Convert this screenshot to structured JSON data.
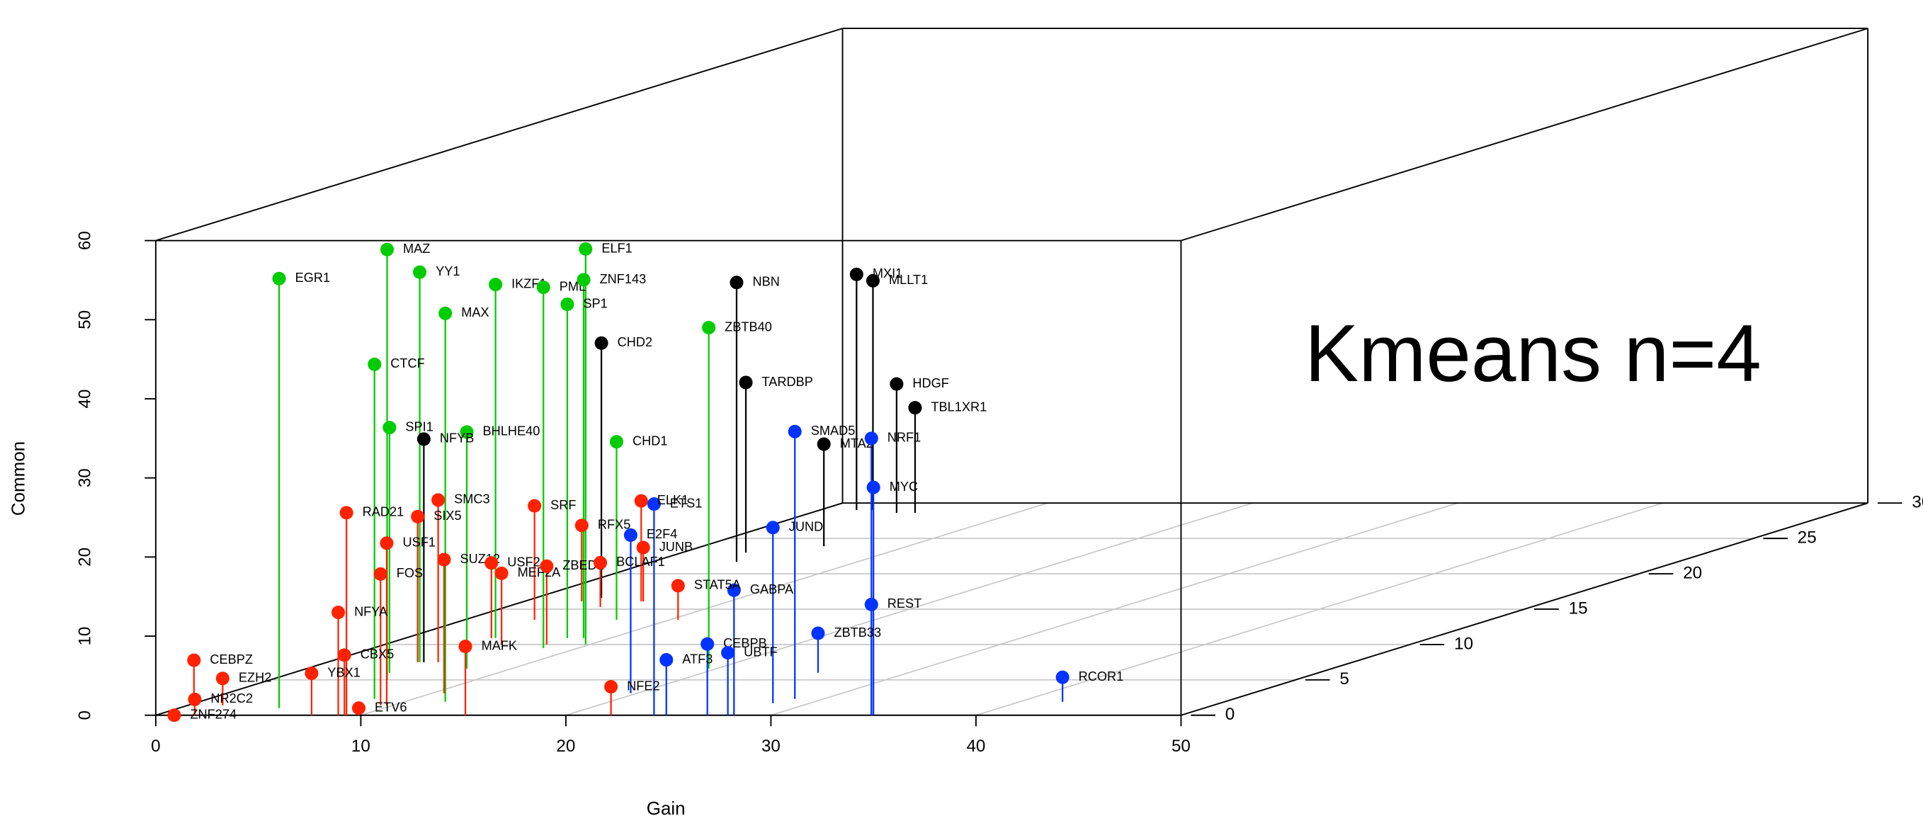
{
  "chart_data": {
    "type": "scatter3d",
    "xlabel": "Gain",
    "zlabel": "Common",
    "annotation": "Kmeans n=4",
    "xlim": [
      0,
      50
    ],
    "xticks": [
      0,
      10,
      20,
      30,
      40,
      50
    ],
    "ylim": [
      0,
      30
    ],
    "yticks": [
      0,
      5,
      10,
      15,
      20,
      25,
      30
    ],
    "zlim": [
      0,
      60
    ],
    "zticks": [
      0,
      10,
      20,
      30,
      40,
      50,
      60
    ],
    "grid": true,
    "points": [
      {
        "label": "EGR1",
        "color": "#00cc00",
        "x": 4.9,
        "y": 1,
        "z": 54.3
      },
      {
        "label": "MAZ",
        "color": "#00cc00",
        "x": 5.7,
        "y": 5,
        "z": 54.4
      },
      {
        "label": "YY1",
        "color": "#00cc00",
        "x": 4.5,
        "y": 7.5,
        "z": 49.3
      },
      {
        "label": "MAX",
        "color": "#00cc00",
        "x": 12.0,
        "y": 1.9,
        "z": 49.1
      },
      {
        "label": "CTCF",
        "color": "#00cc00",
        "x": 8.1,
        "y": 2.3,
        "z": 42.3
      },
      {
        "label": "SPI1",
        "color": "#00cc00",
        "x": 4.7,
        "y": 6,
        "z": 31
      },
      {
        "label": "IKZF1",
        "color": "#00cc00",
        "x": 4.4,
        "y": 10.9,
        "z": 44.7
      },
      {
        "label": "PML",
        "color": "#00cc00",
        "x": 8.3,
        "y": 9.5,
        "z": 45.6
      },
      {
        "label": "ELF1",
        "color": "#00cc00",
        "x": 9.8,
        "y": 10,
        "z": 50
      },
      {
        "label": "ZNF143",
        "color": "#00cc00",
        "x": 8.7,
        "y": 10.9,
        "z": 45.3
      },
      {
        "label": "SP1",
        "color": "#00cc00",
        "x": 7.9,
        "y": 10.9,
        "z": 42.2
      },
      {
        "label": "BHLHE40",
        "color": "#00cc00",
        "x": 7.8,
        "y": 6.6,
        "z": 29.9
      },
      {
        "label": "CHD1",
        "color": "#00cc00",
        "x": 7.4,
        "y": 13.5,
        "z": 22.5
      },
      {
        "label": "ZBTB40",
        "color": "#00cc00",
        "x": 19.6,
        "y": 6.6,
        "z": 43.1
      },
      {
        "label": "NFYB",
        "color": "#000000",
        "x": 4.7,
        "y": 7.5,
        "z": 28.2
      },
      {
        "label": "CHD2",
        "color": "#000000",
        "x": 3.2,
        "y": 16.6,
        "z": 32.2
      },
      {
        "label": "NBN",
        "color": "#000000",
        "x": 4.1,
        "y": 21.7,
        "z": 35.3
      },
      {
        "label": "TARDBP",
        "color": "#000000",
        "x": 3.1,
        "y": 23,
        "z": 21.5
      },
      {
        "label": "MXI1",
        "color": "#000000",
        "x": 1.8,
        "y": 29,
        "z": 29.8
      },
      {
        "label": "MLLT1",
        "color": "#000000",
        "x": 2.6,
        "y": 29,
        "z": 29
      },
      {
        "label": "HDGF",
        "color": "#000000",
        "x": 4.2,
        "y": 28.6,
        "z": 16.3
      },
      {
        "label": "TBL1XR1",
        "color": "#000000",
        "x": 5.1,
        "y": 28.6,
        "z": 13.3
      },
      {
        "label": "MTA2",
        "color": "#000000",
        "x": 5.9,
        "y": 23.9,
        "z": 12.9
      },
      {
        "label": "SMAD5",
        "color": "#0033ff",
        "x": 28.6,
        "y": 2.3,
        "z": 33.8
      },
      {
        "label": "NRF1",
        "color": "#0033ff",
        "x": 34.9,
        "y": 0,
        "z": 35
      },
      {
        "label": "MYC",
        "color": "#0033ff",
        "x": 35,
        "y": 0,
        "z": 28.8
      },
      {
        "label": "ETS1",
        "color": "#0033ff",
        "x": 24.3,
        "y": 0,
        "z": 26.7
      },
      {
        "label": "E2F4",
        "color": "#0033ff",
        "x": 19.7,
        "y": 3.1,
        "z": 20
      },
      {
        "label": "JUND",
        "color": "#0033ff",
        "x": 28.2,
        "y": 1.7,
        "z": 22.2
      },
      {
        "label": "GABPA",
        "color": "#0033ff",
        "x": 28.2,
        "y": 0,
        "z": 15.8
      },
      {
        "label": "REST",
        "color": "#0033ff",
        "x": 34.9,
        "y": 0,
        "z": 14
      },
      {
        "label": "ZBTB33",
        "color": "#0033ff",
        "x": 25.6,
        "y": 6,
        "z": 5
      },
      {
        "label": "CEBPB",
        "color": "#0033ff",
        "x": 26.9,
        "y": 0,
        "z": 9
      },
      {
        "label": "UBTF",
        "color": "#0033ff",
        "x": 27.9,
        "y": 0,
        "z": 7.9
      },
      {
        "label": "ATF3",
        "color": "#0033ff",
        "x": 24.9,
        "y": 0,
        "z": 7
      },
      {
        "label": "RCOR1",
        "color": "#0033ff",
        "x": 42.1,
        "y": 1.9,
        "z": 3.1
      },
      {
        "label": "CEBPZ",
        "color": "#ff2200",
        "x": 0.3,
        "y": 1.4,
        "z": 5.7
      },
      {
        "label": "EZH2",
        "color": "#ff2200",
        "x": 1.7,
        "y": 1.4,
        "z": 3.4
      },
      {
        "label": "NR2C2",
        "color": "#ff2200",
        "x": 1.9,
        "y": 0,
        "z": 2
      },
      {
        "label": "ZNF274",
        "color": "#ff2200",
        "x": 0.9,
        "y": 0,
        "z": 0
      },
      {
        "label": "YBX1",
        "color": "#ff2200",
        "x": 7.6,
        "y": 0,
        "z": 5.3
      },
      {
        "label": "CBX5",
        "color": "#ff2200",
        "x": 9.2,
        "y": 0,
        "z": 7.6
      },
      {
        "label": "ETV6",
        "color": "#ff2200",
        "x": 9.9,
        "y": 0,
        "z": 0.9
      },
      {
        "label": "NFYA",
        "color": "#ff2200",
        "x": 8.9,
        "y": 0,
        "z": 13
      },
      {
        "label": "FOS",
        "color": "#ff2200",
        "x": 9.4,
        "y": 1.4,
        "z": 16.6
      },
      {
        "label": "USF1",
        "color": "#ff2200",
        "x": 9.7,
        "y": 1.4,
        "z": 20.5
      },
      {
        "label": "RAD21",
        "color": "#ff2200",
        "x": 9.3,
        "y": 0,
        "z": 25.6
      },
      {
        "label": "SIX5",
        "color": "#ff2200",
        "x": 4.4,
        "y": 7.5,
        "z": 18.4
      },
      {
        "label": "SMC3",
        "color": "#ff2200",
        "x": 5.4,
        "y": 7.5,
        "z": 20.5
      },
      {
        "label": "SUZ12",
        "color": "#ff2200",
        "x": 10.6,
        "y": 3.1,
        "z": 16.9
      },
      {
        "label": "MAFK",
        "color": "#ff2200",
        "x": 15.1,
        "y": 0,
        "z": 8.7
      },
      {
        "label": "USF2",
        "color": "#ff2200",
        "x": 4.2,
        "y": 10.9,
        "z": 9.5
      },
      {
        "label": "MEF2A",
        "color": "#ff2200",
        "x": 5.7,
        "y": 10,
        "z": 9
      },
      {
        "label": "ZBED1",
        "color": "#ff2200",
        "x": 7.9,
        "y": 10,
        "z": 9.9
      },
      {
        "label": "SRF",
        "color": "#ff2200",
        "x": 3.4,
        "y": 13.5,
        "z": 14.4
      },
      {
        "label": "RFX5",
        "color": "#ff2200",
        "x": 2.8,
        "y": 16.1,
        "z": 9.6
      },
      {
        "label": "BCLAF1",
        "color": "#ff2200",
        "x": 4.6,
        "y": 15.3,
        "z": 5.6
      },
      {
        "label": "ELK1",
        "color": "#ff2200",
        "x": 5.7,
        "y": 16.1,
        "z": 12.7
      },
      {
        "label": "JUNB",
        "color": "#ff2200",
        "x": 5.8,
        "y": 16.1,
        "z": 6.8
      },
      {
        "label": "STAT5A",
        "color": "#ff2200",
        "x": 10.4,
        "y": 13.5,
        "z": 4.3
      },
      {
        "label": "NFE2",
        "color": "#ff2200",
        "x": 22.2,
        "y": 0,
        "z": 3.6
      }
    ]
  }
}
